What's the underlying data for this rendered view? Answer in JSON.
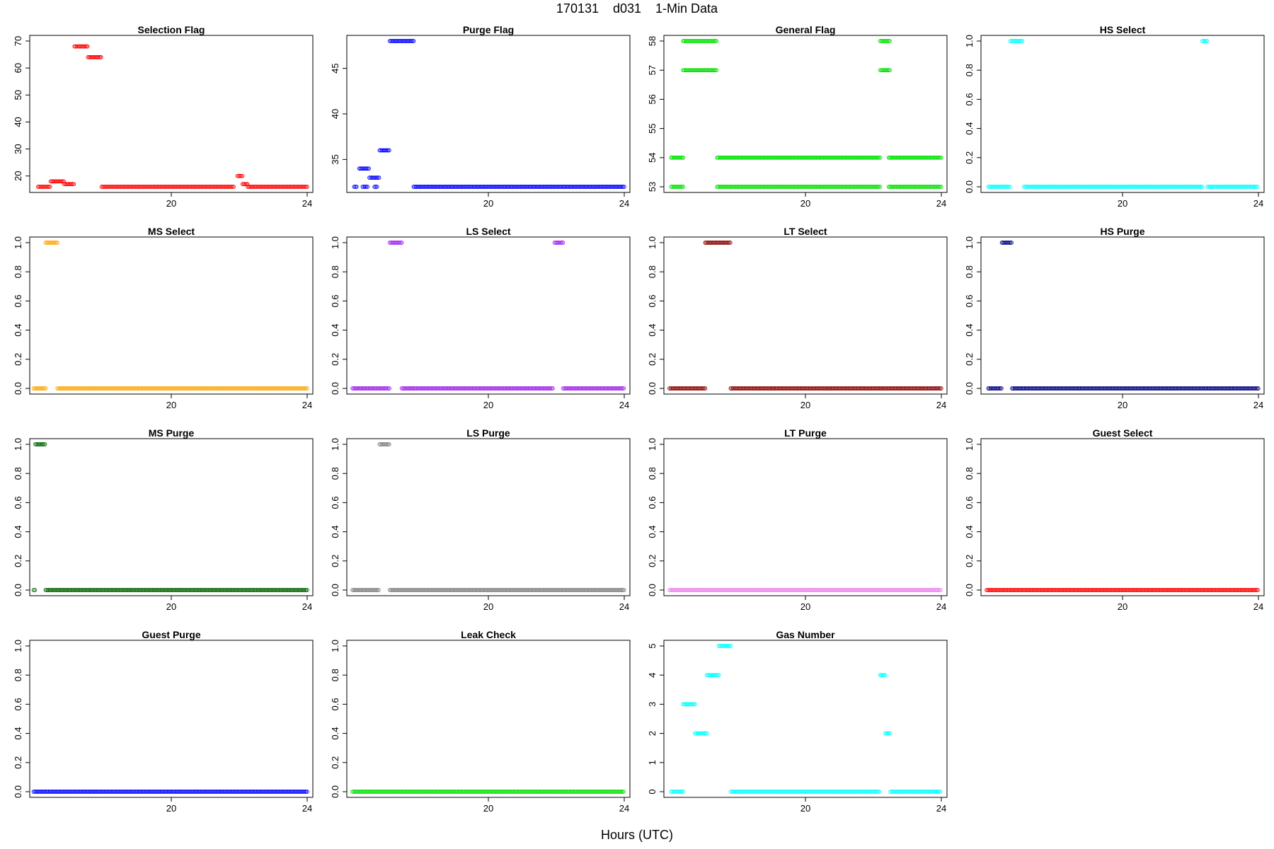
{
  "title": "170131    d031    1-Min Data",
  "xlabel": "Hours (UTC)",
  "colors": {
    "red": "#ff0000",
    "blue": "#0000ff",
    "green": "#00e000",
    "cyan": "#00ffff",
    "orange": "#ffa500",
    "purple": "#a020f0",
    "maroon": "#8b0000",
    "navy": "#000080",
    "darkgreen": "#006400",
    "gray": "#808080",
    "violet": "#ee82ee"
  },
  "chart_data": [
    {
      "type": "scatter",
      "title": "Selection Flag",
      "color": "#ff0000",
      "xlim": [
        16,
        24
      ],
      "ylim": [
        16,
        70
      ],
      "yticks": [
        20,
        30,
        40,
        50,
        60,
        70
      ],
      "ytick_labels": [
        "20",
        "30",
        "40",
        "50",
        "60",
        "70"
      ],
      "xticks": [
        20,
        24
      ],
      "xtick_labels": [
        "20",
        "24"
      ],
      "segments": [
        [
          16.08,
          16.45,
          16
        ],
        [
          16.45,
          16.85,
          18
        ],
        [
          16.85,
          17.15,
          17
        ],
        [
          17.15,
          17.55,
          68
        ],
        [
          17.55,
          17.95,
          64
        ],
        [
          17.95,
          21.85,
          16
        ],
        [
          21.95,
          22.1,
          20
        ],
        [
          22.1,
          22.25,
          17
        ],
        [
          22.25,
          24,
          16
        ]
      ]
    },
    {
      "type": "scatter",
      "title": "Purge Flag",
      "color": "#0000ff",
      "xlim": [
        16,
        24
      ],
      "ylim": [
        32,
        48
      ],
      "yticks": [
        35,
        40,
        45
      ],
      "ytick_labels": [
        "35",
        "40",
        "45"
      ],
      "xticks": [
        20,
        24
      ],
      "xtick_labels": [
        "20",
        "24"
      ],
      "segments": [
        [
          16.05,
          16.15,
          32
        ],
        [
          16.2,
          16.5,
          34
        ],
        [
          16.3,
          16.45,
          32
        ],
        [
          16.5,
          16.8,
          33
        ],
        [
          16.65,
          16.75,
          32
        ],
        [
          16.8,
          17.1,
          36
        ],
        [
          17.1,
          17.8,
          48
        ],
        [
          17.8,
          24,
          32
        ]
      ]
    },
    {
      "type": "scatter",
      "title": "General Flag",
      "color": "#00e000",
      "xlim": [
        16,
        24
      ],
      "ylim": [
        53,
        58
      ],
      "yticks": [
        53,
        54,
        55,
        56,
        57,
        58
      ],
      "ytick_labels": [
        "53",
        "54",
        "55",
        "56",
        "57",
        "58"
      ],
      "xticks": [
        20,
        24
      ],
      "xtick_labels": [
        "20",
        "24"
      ],
      "segments": [
        [
          16.05,
          16.4,
          54
        ],
        [
          16.05,
          16.4,
          53
        ],
        [
          16.4,
          17.4,
          58
        ],
        [
          16.4,
          17.4,
          57
        ],
        [
          17.4,
          22.2,
          54
        ],
        [
          17.4,
          22.2,
          53
        ],
        [
          22.2,
          22.5,
          58
        ],
        [
          22.2,
          22.5,
          57
        ],
        [
          22.45,
          24,
          54
        ],
        [
          22.45,
          24,
          53
        ]
      ]
    },
    {
      "type": "scatter",
      "title": "HS Select",
      "color": "#00ffff",
      "xlim": [
        16,
        24
      ],
      "ylim": [
        0,
        1
      ],
      "yticks": [
        0,
        0.2,
        0.4,
        0.6,
        0.8,
        1.0
      ],
      "ytick_labels": [
        "0.0",
        "0.2",
        "0.4",
        "0.6",
        "0.8",
        "1.0"
      ],
      "xticks": [
        20,
        24
      ],
      "xtick_labels": [
        "20",
        "24"
      ],
      "segments": [
        [
          16.05,
          16.7,
          0
        ],
        [
          16.7,
          17.05,
          1
        ],
        [
          17.1,
          22.35,
          0
        ],
        [
          22.35,
          22.5,
          1
        ],
        [
          22.5,
          24,
          0
        ]
      ]
    },
    {
      "type": "scatter",
      "title": "MS Select",
      "color": "#ffa500",
      "xlim": [
        16,
        24
      ],
      "ylim": [
        0,
        1
      ],
      "yticks": [
        0,
        0.2,
        0.4,
        0.6,
        0.8,
        1.0
      ],
      "ytick_labels": [
        "0.0",
        "0.2",
        "0.4",
        "0.6",
        "0.8",
        "1.0"
      ],
      "xticks": [
        20,
        24
      ],
      "xtick_labels": [
        "20",
        "24"
      ],
      "segments": [
        [
          15.95,
          16.3,
          0
        ],
        [
          16.3,
          16.65,
          1
        ],
        [
          16.65,
          24,
          0
        ]
      ]
    },
    {
      "type": "scatter",
      "title": "LS Select",
      "color": "#a020f0",
      "xlim": [
        16,
        24
      ],
      "ylim": [
        0,
        1
      ],
      "yticks": [
        0,
        0.2,
        0.4,
        0.6,
        0.8,
        1.0
      ],
      "ytick_labels": [
        "0.0",
        "0.2",
        "0.4",
        "0.6",
        "0.8",
        "1.0"
      ],
      "xticks": [
        20,
        24
      ],
      "xtick_labels": [
        "20",
        "24"
      ],
      "segments": [
        [
          16.0,
          17.1,
          0
        ],
        [
          17.1,
          17.45,
          1
        ],
        [
          17.45,
          21.9,
          0
        ],
        [
          21.95,
          22.2,
          1
        ],
        [
          22.2,
          24,
          0
        ]
      ]
    },
    {
      "type": "scatter",
      "title": "LT Select",
      "color": "#8b0000",
      "xlim": [
        16,
        24
      ],
      "ylim": [
        0,
        1
      ],
      "yticks": [
        0,
        0.2,
        0.4,
        0.6,
        0.8,
        1.0
      ],
      "ytick_labels": [
        "0.0",
        "0.2",
        "0.4",
        "0.6",
        "0.8",
        "1.0"
      ],
      "xticks": [
        20,
        24
      ],
      "xtick_labels": [
        "20",
        "24"
      ],
      "segments": [
        [
          16.0,
          17.05,
          0
        ],
        [
          17.05,
          17.8,
          1
        ],
        [
          17.8,
          24,
          0
        ]
      ]
    },
    {
      "type": "scatter",
      "title": "HS Purge",
      "color": "#000080",
      "xlim": [
        16,
        24
      ],
      "ylim": [
        0,
        1
      ],
      "yticks": [
        0,
        0.2,
        0.4,
        0.6,
        0.8,
        1.0
      ],
      "ytick_labels": [
        "0.0",
        "0.2",
        "0.4",
        "0.6",
        "0.8",
        "1.0"
      ],
      "xticks": [
        20,
        24
      ],
      "xtick_labels": [
        "20",
        "24"
      ],
      "segments": [
        [
          16.05,
          16.45,
          0
        ],
        [
          16.45,
          16.75,
          1
        ],
        [
          16.75,
          24,
          0
        ]
      ]
    },
    {
      "type": "scatter",
      "title": "MS Purge",
      "color": "#006400",
      "xlim": [
        16,
        24
      ],
      "ylim": [
        0,
        1
      ],
      "yticks": [
        0,
        0.2,
        0.4,
        0.6,
        0.8,
        1.0
      ],
      "ytick_labels": [
        "0.0",
        "0.2",
        "0.4",
        "0.6",
        "0.8",
        "1.0"
      ],
      "xticks": [
        20,
        24
      ],
      "xtick_labels": [
        "20",
        "24"
      ],
      "segments": [
        [
          15.95,
          16.0,
          0
        ],
        [
          16.0,
          16.3,
          1
        ],
        [
          16.3,
          24,
          0
        ]
      ]
    },
    {
      "type": "scatter",
      "title": "LS Purge",
      "color": "#808080",
      "xlim": [
        16,
        24
      ],
      "ylim": [
        0,
        1
      ],
      "yticks": [
        0,
        0.2,
        0.4,
        0.6,
        0.8,
        1.0
      ],
      "ytick_labels": [
        "0.0",
        "0.2",
        "0.4",
        "0.6",
        "0.8",
        "1.0"
      ],
      "xticks": [
        20,
        24
      ],
      "xtick_labels": [
        "20",
        "24"
      ],
      "segments": [
        [
          16.0,
          16.8,
          0
        ],
        [
          16.8,
          17.1,
          1
        ],
        [
          17.1,
          24,
          0
        ]
      ]
    },
    {
      "type": "scatter",
      "title": "LT Purge",
      "color": "#ee82ee",
      "xlim": [
        16,
        24
      ],
      "ylim": [
        0,
        1
      ],
      "yticks": [
        0,
        0.2,
        0.4,
        0.6,
        0.8,
        1.0
      ],
      "ytick_labels": [
        "0.0",
        "0.2",
        "0.4",
        "0.6",
        "0.8",
        "1.0"
      ],
      "xticks": [
        20,
        24
      ],
      "xtick_labels": [
        "20",
        "24"
      ],
      "segments": [
        [
          16.0,
          24,
          0
        ]
      ]
    },
    {
      "type": "scatter",
      "title": "Guest Select",
      "color": "#ff0000",
      "xlim": [
        16,
        24
      ],
      "ylim": [
        0,
        1
      ],
      "yticks": [
        0,
        0.2,
        0.4,
        0.6,
        0.8,
        1.0
      ],
      "ytick_labels": [
        "0.0",
        "0.2",
        "0.4",
        "0.6",
        "0.8",
        "1.0"
      ],
      "xticks": [
        20,
        24
      ],
      "xtick_labels": [
        "20",
        "24"
      ],
      "segments": [
        [
          16.0,
          24,
          0
        ]
      ]
    },
    {
      "type": "scatter",
      "title": "Guest Purge",
      "color": "#0000ff",
      "xlim": [
        16,
        24
      ],
      "ylim": [
        0,
        1
      ],
      "yticks": [
        0,
        0.2,
        0.4,
        0.6,
        0.8,
        1.0
      ],
      "ytick_labels": [
        "0.0",
        "0.2",
        "0.4",
        "0.6",
        "0.8",
        "1.0"
      ],
      "xticks": [
        20,
        24
      ],
      "xtick_labels": [
        "20",
        "24"
      ],
      "segments": [
        [
          15.95,
          24,
          0
        ]
      ]
    },
    {
      "type": "scatter",
      "title": "Leak Check",
      "color": "#00e000",
      "xlim": [
        16,
        24
      ],
      "ylim": [
        0,
        1
      ],
      "yticks": [
        0,
        0.2,
        0.4,
        0.6,
        0.8,
        1.0
      ],
      "ytick_labels": [
        "0.0",
        "0.2",
        "0.4",
        "0.6",
        "0.8",
        "1.0"
      ],
      "xticks": [
        20,
        24
      ],
      "xtick_labels": [
        "20",
        "24"
      ],
      "segments": [
        [
          16.0,
          24,
          0
        ]
      ]
    },
    {
      "type": "scatter",
      "title": "Gas Number",
      "color": "#00ffff",
      "xlim": [
        16,
        24
      ],
      "ylim": [
        0,
        5
      ],
      "yticks": [
        0,
        1,
        2,
        3,
        4,
        5
      ],
      "ytick_labels": [
        "0",
        "1",
        "2",
        "3",
        "4",
        "5"
      ],
      "xticks": [
        20,
        24
      ],
      "xtick_labels": [
        "20",
        "24"
      ],
      "segments": [
        [
          16.05,
          16.4,
          0
        ],
        [
          16.4,
          16.75,
          3
        ],
        [
          16.75,
          17.1,
          2
        ],
        [
          17.1,
          17.45,
          4
        ],
        [
          17.45,
          17.8,
          5
        ],
        [
          17.8,
          22.2,
          0
        ],
        [
          22.2,
          22.35,
          4
        ],
        [
          22.35,
          22.5,
          2
        ],
        [
          22.5,
          24,
          0
        ]
      ]
    }
  ]
}
